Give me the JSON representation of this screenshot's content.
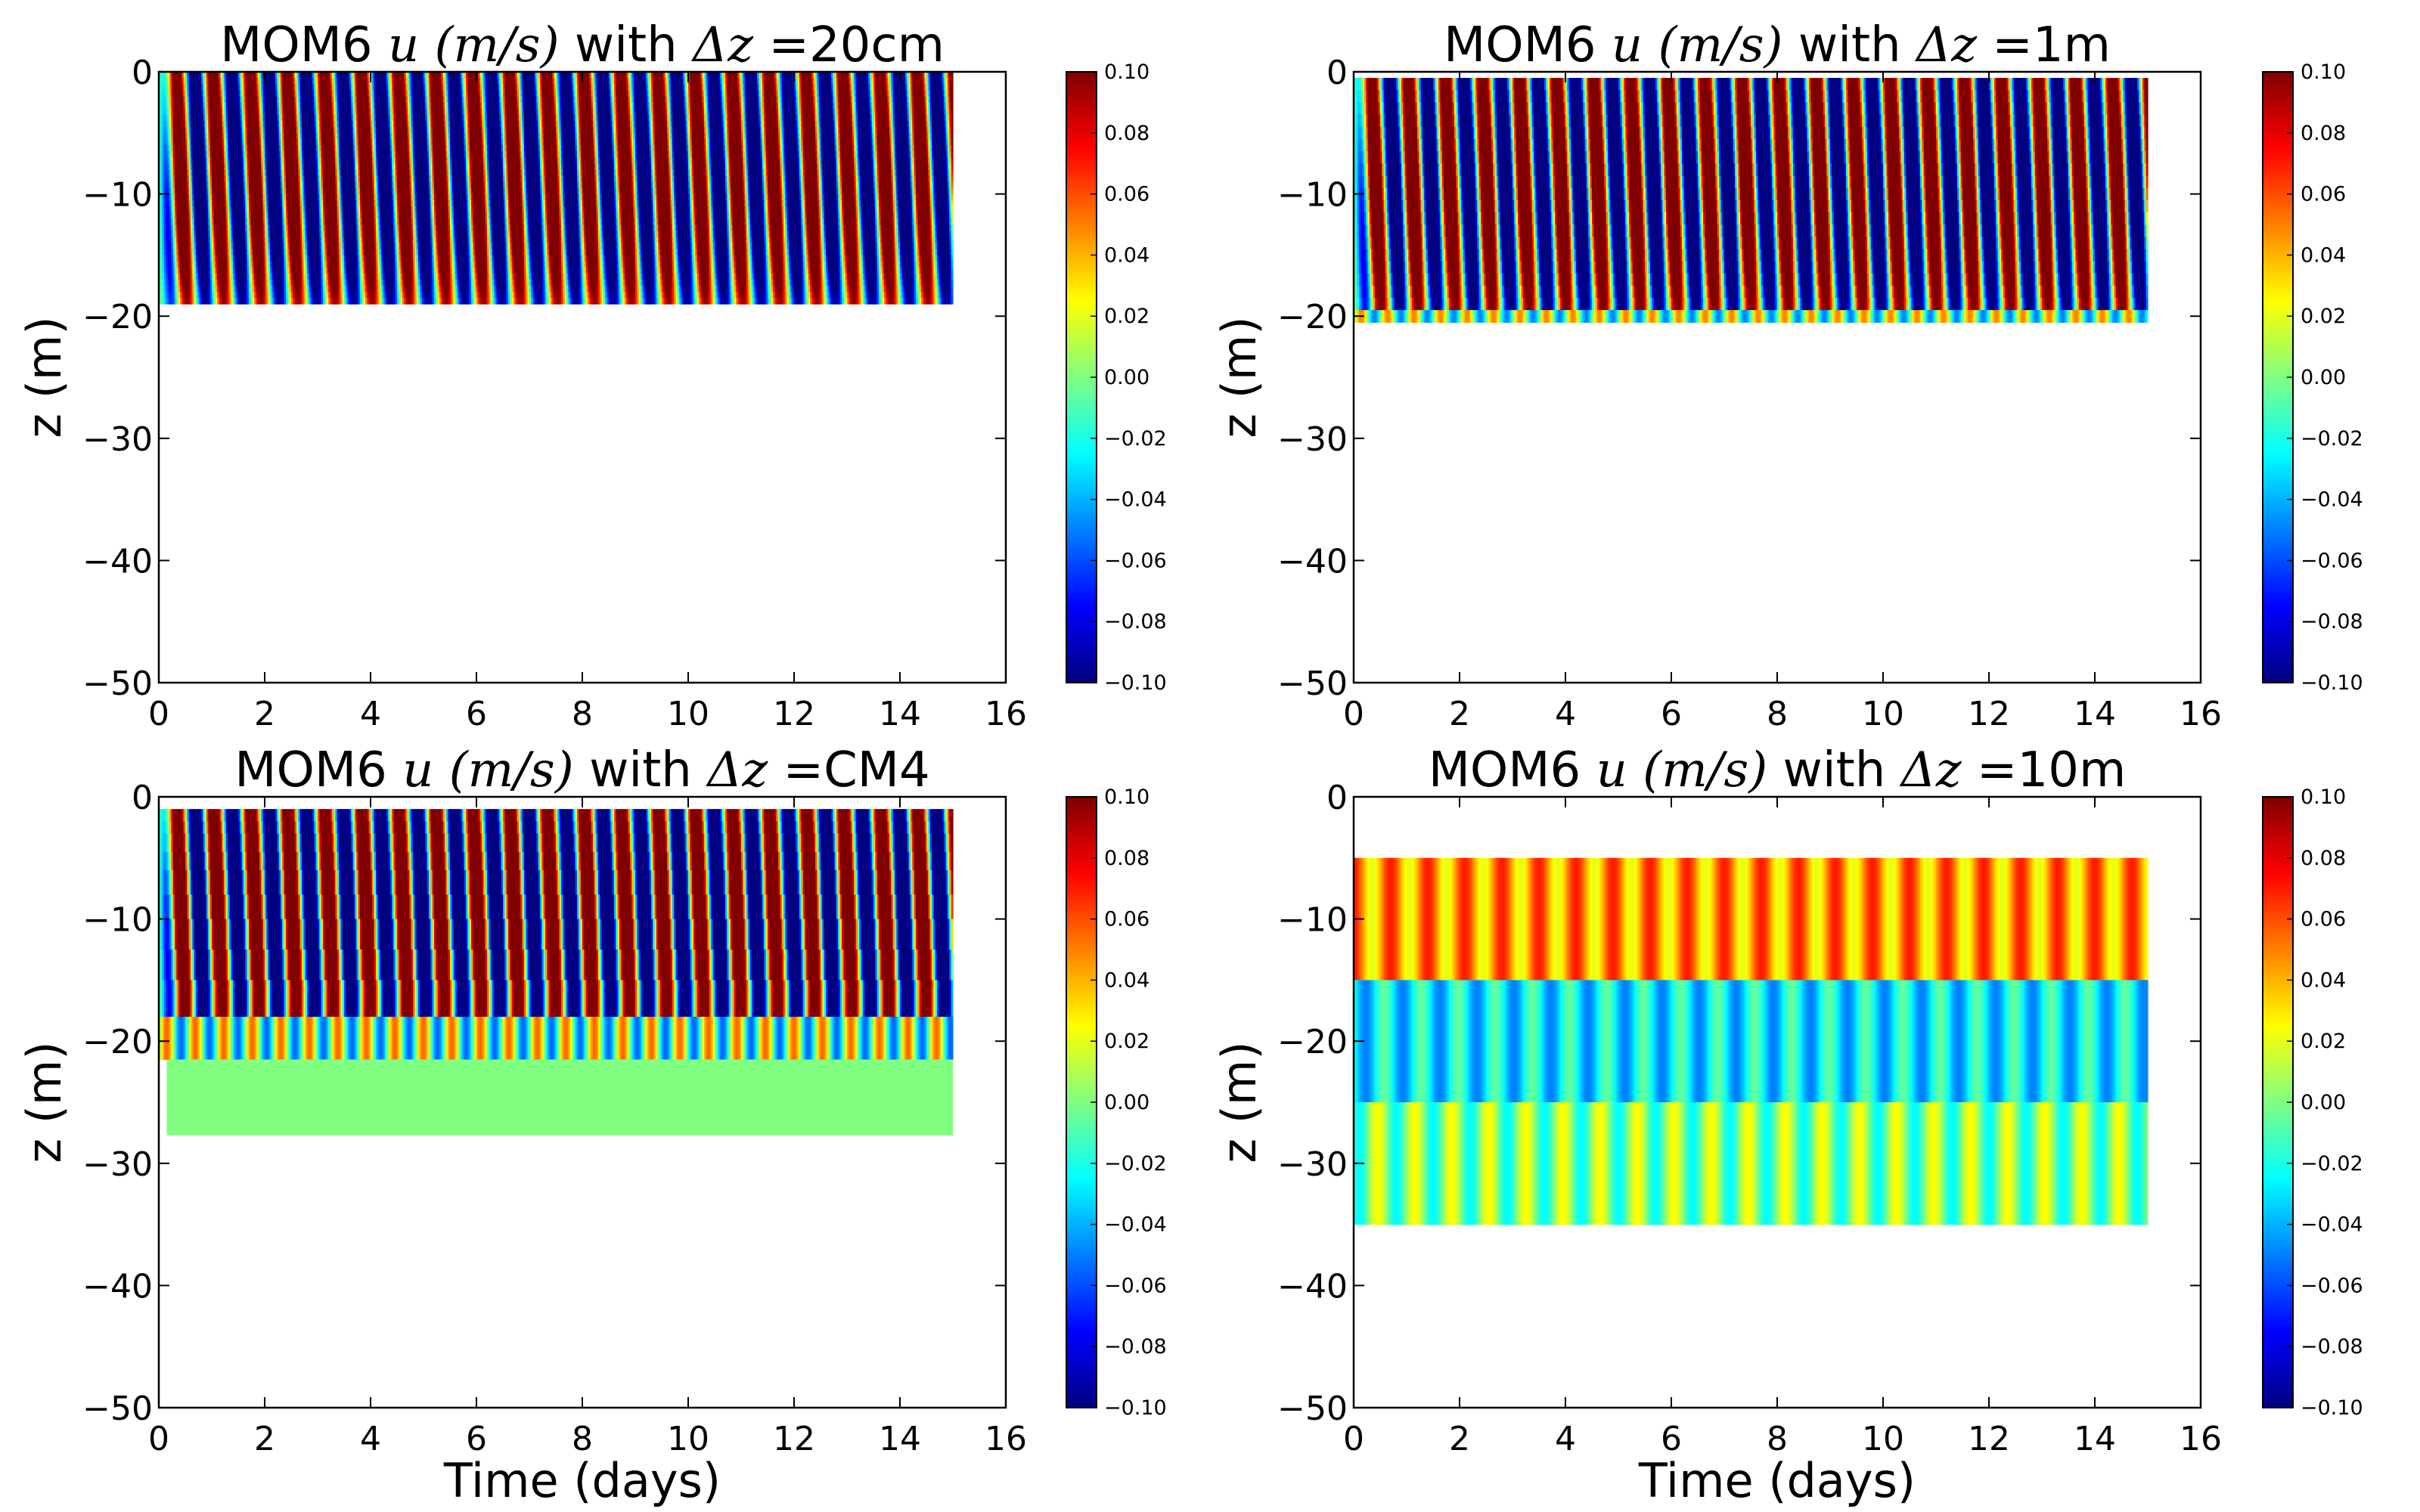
{
  "figure": {
    "colormap": "jet",
    "colors": {
      "zero": "#80ff80"
    }
  },
  "chart_data": [
    {
      "type": "heatmap",
      "title": {
        "prefix": "MOM6 ",
        "var": "u",
        "units": "(m/s)",
        "mid": " with ",
        "delta": "Δz",
        "suffix": " =20cm"
      },
      "xlabel": "",
      "ylabel": "z (m)",
      "xlim": [
        0,
        16
      ],
      "ylim": [
        -50,
        0
      ],
      "xticks": [
        "0",
        "2",
        "4",
        "6",
        "8",
        "10",
        "12",
        "14",
        "16"
      ],
      "yticks": [
        "0",
        "−10",
        "−20",
        "−30",
        "−40",
        "−50"
      ],
      "colorbar": {
        "min": -0.1,
        "max": 0.1,
        "ticks": [
          "0.10",
          "0.08",
          "0.06",
          "0.04",
          "0.02",
          "0.00",
          "−0.02",
          "−0.04",
          "−0.06",
          "−0.08",
          "−0.10"
        ]
      },
      "data": {
        "t_start": 0.0,
        "t_end": 15.0,
        "period_days": 0.7,
        "amplitude": 0.1,
        "layers": "continuous",
        "z_top": 0,
        "z_bottom": -19,
        "spinup_days": 0.3
      }
    },
    {
      "type": "heatmap",
      "title": {
        "prefix": "MOM6 ",
        "var": "u",
        "units": "(m/s)",
        "mid": " with ",
        "delta": "Δz",
        "suffix": " =1m"
      },
      "xlabel": "",
      "ylabel": "z (m)",
      "xlim": [
        0,
        16
      ],
      "ylim": [
        -50,
        0
      ],
      "xticks": [
        "0",
        "2",
        "4",
        "6",
        "8",
        "10",
        "12",
        "14",
        "16"
      ],
      "yticks": [
        "0",
        "−10",
        "−20",
        "−30",
        "−40",
        "−50"
      ],
      "colorbar": {
        "min": -0.1,
        "max": 0.1,
        "ticks": [
          "0.10",
          "0.08",
          "0.06",
          "0.04",
          "0.02",
          "0.00",
          "−0.02",
          "−0.04",
          "−0.06",
          "−0.08",
          "−0.10"
        ]
      },
      "data": {
        "t_start": 0.0,
        "t_end": 15.0,
        "period_days": 0.7,
        "amplitude": 0.1,
        "layers": "1m",
        "z_top": -0.5,
        "z_bottom": -20.5,
        "spinup_days": 0.3
      }
    },
    {
      "type": "heatmap",
      "title": {
        "prefix": "MOM6 ",
        "var": "u",
        "units": "(m/s)",
        "mid": " with ",
        "delta": "Δz",
        "suffix": " =CM4"
      },
      "xlabel": "Time (days)",
      "ylabel": "z (m)",
      "xlim": [
        0,
        16
      ],
      "ylim": [
        -50,
        0
      ],
      "xticks": [
        "0",
        "2",
        "4",
        "6",
        "8",
        "10",
        "12",
        "14",
        "16"
      ],
      "yticks": [
        "0",
        "−10",
        "−20",
        "−30",
        "−40",
        "−50"
      ],
      "colorbar": {
        "min": -0.1,
        "max": 0.1,
        "ticks": [
          "0.10",
          "0.08",
          "0.06",
          "0.04",
          "0.02",
          "0.00",
          "−0.02",
          "−0.04",
          "−0.06",
          "−0.08",
          "−0.10"
        ]
      },
      "data": {
        "t_start": 0.0,
        "t_end": 15.0,
        "period_days": 0.7,
        "amplitude": 0.1,
        "layers": "cm4",
        "z_top": -1,
        "z_bottom": -27.7,
        "spinup_days": 0.3
      }
    },
    {
      "type": "heatmap",
      "title": {
        "prefix": "MOM6 ",
        "var": "u",
        "units": "(m/s)",
        "mid": " with ",
        "delta": "Δz",
        "suffix": " =10m"
      },
      "xlabel": "Time (days)",
      "ylabel": "z (m)",
      "xlim": [
        0,
        16
      ],
      "ylim": [
        -50,
        0
      ],
      "xticks": [
        "0",
        "2",
        "4",
        "6",
        "8",
        "10",
        "12",
        "14",
        "16"
      ],
      "yticks": [
        "0",
        "−10",
        "−20",
        "−30",
        "−40",
        "−50"
      ],
      "colorbar": {
        "min": -0.1,
        "max": 0.1,
        "ticks": [
          "0.10",
          "0.08",
          "0.06",
          "0.04",
          "0.02",
          "0.00",
          "−0.02",
          "−0.04",
          "−0.06",
          "−0.08",
          "−0.10"
        ]
      },
      "data": {
        "t_start": 0.0,
        "t_end": 15.0,
        "period_days": 0.7,
        "layers": "10m",
        "band_tops": [
          -5,
          -15,
          -25
        ],
        "band_bottoms": [
          -15,
          -25,
          -35
        ],
        "band_means": [
          0.045,
          -0.028,
          0.0
        ],
        "band_amplitudes": [
          0.025,
          0.022,
          0.025
        ]
      }
    }
  ]
}
